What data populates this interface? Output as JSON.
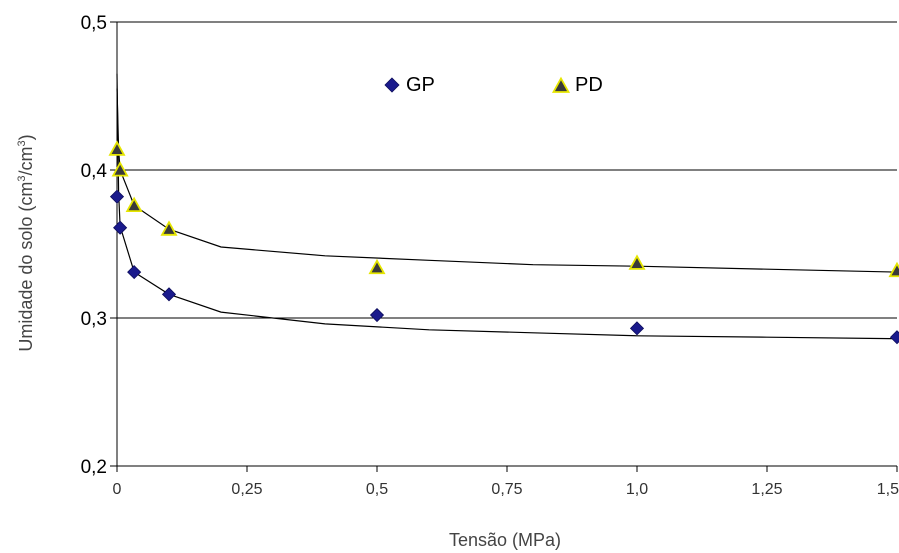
{
  "chart_data": {
    "type": "scatter",
    "xlabel": "Tensão (MPa)",
    "ylabel_main": "Umidade do solo (cm",
    "ylabel_sup1": "3",
    "ylabel_mid": "/cm",
    "ylabel_sup2": "3",
    "ylabel_end": ")",
    "xlim": [
      0,
      1.5
    ],
    "ylim": [
      0.2,
      0.5
    ],
    "x_ticks": [
      0,
      0.25,
      0.5,
      0.75,
      1.0,
      1.25,
      1.5
    ],
    "x_tick_labels": [
      "0",
      "0,25",
      "0,5",
      "0,75",
      "1,0",
      "1,25",
      "1,5"
    ],
    "y_ticks": [
      0.2,
      0.3,
      0.4,
      0.5
    ],
    "y_tick_labels": [
      "0,2",
      "0,3",
      "0,4",
      "0,5"
    ],
    "grid": "horizontal",
    "legend_position": "top-center",
    "series": [
      {
        "name": "GP",
        "marker": "diamond",
        "color": "#1a1a8c",
        "x": [
          0.0,
          0.006,
          0.033,
          0.1,
          0.5,
          1.0,
          1.5
        ],
        "y": [
          0.382,
          0.361,
          0.331,
          0.316,
          0.302,
          0.293,
          0.287
        ],
        "fit": [
          [
            0.0,
            0.465
          ],
          [
            0.003,
            0.385
          ],
          [
            0.006,
            0.362
          ],
          [
            0.033,
            0.331
          ],
          [
            0.1,
            0.316
          ],
          [
            0.2,
            0.304
          ],
          [
            0.4,
            0.296
          ],
          [
            0.6,
            0.292
          ],
          [
            0.8,
            0.29
          ],
          [
            1.0,
            0.288
          ],
          [
            1.25,
            0.287
          ],
          [
            1.5,
            0.286
          ]
        ]
      },
      {
        "name": "PD",
        "marker": "triangle",
        "color": "#3a3a3a",
        "edge_color": "#e6e600",
        "x": [
          0.0,
          0.006,
          0.033,
          0.1,
          0.5,
          1.0,
          1.5
        ],
        "y": [
          0.414,
          0.4,
          0.376,
          0.36,
          0.334,
          0.337,
          0.332
        ],
        "fit": [
          [
            0.0,
            0.455
          ],
          [
            0.003,
            0.414
          ],
          [
            0.006,
            0.4
          ],
          [
            0.033,
            0.376
          ],
          [
            0.1,
            0.36
          ],
          [
            0.2,
            0.348
          ],
          [
            0.4,
            0.342
          ],
          [
            0.6,
            0.339
          ],
          [
            0.8,
            0.336
          ],
          [
            1.0,
            0.335
          ],
          [
            1.25,
            0.333
          ],
          [
            1.5,
            0.331
          ]
        ]
      }
    ]
  }
}
